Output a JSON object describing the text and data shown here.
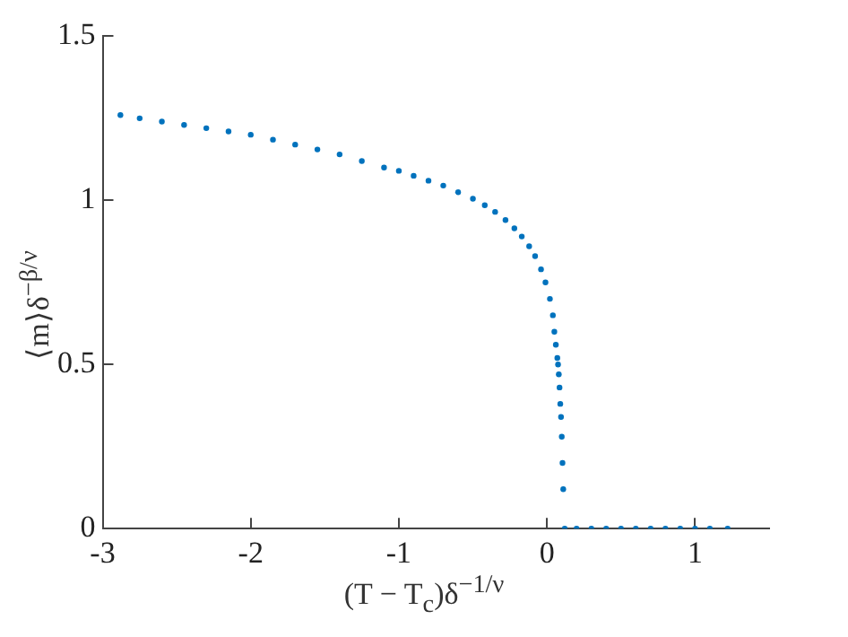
{
  "chart_data": {
    "type": "scatter",
    "xlabel": "(T − T$_{c}$)δ$^{−1/ν}$",
    "ylabel": "⟨m⟩δ$^{−β/ν}$",
    "marker": "circle",
    "grid": false,
    "legend": false,
    "xlim": [
      -3,
      1.5
    ],
    "xticks": [
      -3,
      -2,
      -1,
      0,
      1
    ],
    "ylim": [
      0,
      1.5
    ],
    "yticks": [
      0,
      0.5,
      1,
      1.5
    ],
    "series": [
      {
        "color": "#0072bd",
        "x": [
          -2.88,
          -2.75,
          -2.6,
          -2.45,
          -2.3,
          -2.15,
          -2.0,
          -1.85,
          -1.7,
          -1.55,
          -1.4,
          -1.25,
          -1.1,
          -1.0,
          -0.9,
          -0.8,
          -0.7,
          -0.6,
          -0.5,
          -0.42,
          -0.35,
          -0.28,
          -0.22,
          -0.17,
          -0.12,
          -0.08,
          -0.04,
          -0.01,
          0.02,
          0.04,
          0.05,
          0.06,
          0.07,
          0.075,
          0.08,
          0.085,
          0.09,
          0.095,
          0.1,
          0.105,
          0.11,
          0.12,
          0.2,
          0.3,
          0.4,
          0.5,
          0.6,
          0.7,
          0.8,
          0.9,
          1.0,
          1.1,
          1.22
        ],
        "values": [
          1.26,
          1.25,
          1.24,
          1.23,
          1.22,
          1.21,
          1.2,
          1.185,
          1.17,
          1.155,
          1.14,
          1.12,
          1.1,
          1.09,
          1.075,
          1.06,
          1.045,
          1.025,
          1.005,
          0.985,
          0.965,
          0.94,
          0.915,
          0.89,
          0.86,
          0.83,
          0.79,
          0.75,
          0.7,
          0.65,
          0.6,
          0.56,
          0.52,
          0.5,
          0.47,
          0.43,
          0.38,
          0.34,
          0.28,
          0.2,
          0.12,
          0,
          0,
          0,
          0,
          0,
          0,
          0,
          0,
          0,
          0,
          0,
          0
        ]
      }
    ]
  }
}
